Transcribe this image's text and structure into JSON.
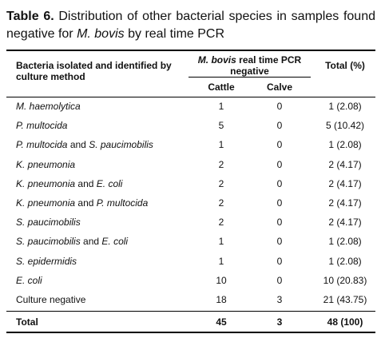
{
  "title": [
    {
      "text": "Table 6.",
      "bold": true,
      "italic": false
    },
    {
      "text": "Distribution of other bacterial species in samples found negative for",
      "bold": false,
      "italic": false
    },
    {
      "text": "M. bovis",
      "bold": false,
      "italic": true
    },
    {
      "text": "by real time PCR",
      "bold": false,
      "italic": false
    }
  ],
  "table": {
    "header": {
      "name": "Bacteria isolated and identified by culture method",
      "group": [
        {
          "text": "M. bovis",
          "italic": true
        },
        {
          "text": "real time PCR negative",
          "italic": false
        }
      ],
      "cattle": "Cattle",
      "calve": "Calve",
      "total": "Total (%)"
    },
    "rows": [
      {
        "name": [
          {
            "text": "M. haemolytica",
            "italic": true
          }
        ],
        "cattle": 1,
        "calve": 0,
        "total": "1 (2.08)"
      },
      {
        "name": [
          {
            "text": "P. multocida",
            "italic": true
          }
        ],
        "cattle": 5,
        "calve": 0,
        "total": "5 (10.42)"
      },
      {
        "name": [
          {
            "text": "P. multocida",
            "italic": true
          },
          {
            "text": "and",
            "italic": false
          },
          {
            "text": "S. paucimobilis",
            "italic": true
          }
        ],
        "cattle": 1,
        "calve": 0,
        "total": "1 (2.08)"
      },
      {
        "name": [
          {
            "text": "K. pneumonia",
            "italic": true
          }
        ],
        "cattle": 2,
        "calve": 0,
        "total": "2 (4.17)"
      },
      {
        "name": [
          {
            "text": "K. pneumonia",
            "italic": true
          },
          {
            "text": "and",
            "italic": false
          },
          {
            "text": "E. coli",
            "italic": true
          }
        ],
        "cattle": 2,
        "calve": 0,
        "total": "2 (4.17)"
      },
      {
        "name": [
          {
            "text": "K. pneumonia",
            "italic": true
          },
          {
            "text": "and",
            "italic": false
          },
          {
            "text": "P. multocida",
            "italic": true
          }
        ],
        "cattle": 2,
        "calve": 0,
        "total": "2 (4.17)"
      },
      {
        "name": [
          {
            "text": "S. paucimobilis",
            "italic": true
          }
        ],
        "cattle": 2,
        "calve": 0,
        "total": "2 (4.17)"
      },
      {
        "name": [
          {
            "text": "S. paucimobilis",
            "italic": true
          },
          {
            "text": "and",
            "italic": false
          },
          {
            "text": "E. coli",
            "italic": true
          }
        ],
        "cattle": 1,
        "calve": 0,
        "total": "1 (2.08)"
      },
      {
        "name": [
          {
            "text": "S. epidermidis",
            "italic": true
          }
        ],
        "cattle": 1,
        "calve": 0,
        "total": "1 (2.08)"
      },
      {
        "name": [
          {
            "text": "E. coli",
            "italic": true
          }
        ],
        "cattle": 10,
        "calve": 0,
        "total": "10 (20.83)"
      },
      {
        "name": [
          {
            "text": "Culture negative",
            "italic": false
          }
        ],
        "cattle": 18,
        "calve": 3,
        "total": "21 (43.75)"
      }
    ],
    "footer": {
      "name": "Total",
      "cattle": 45,
      "calve": 3,
      "total": "48 (100)"
    }
  }
}
